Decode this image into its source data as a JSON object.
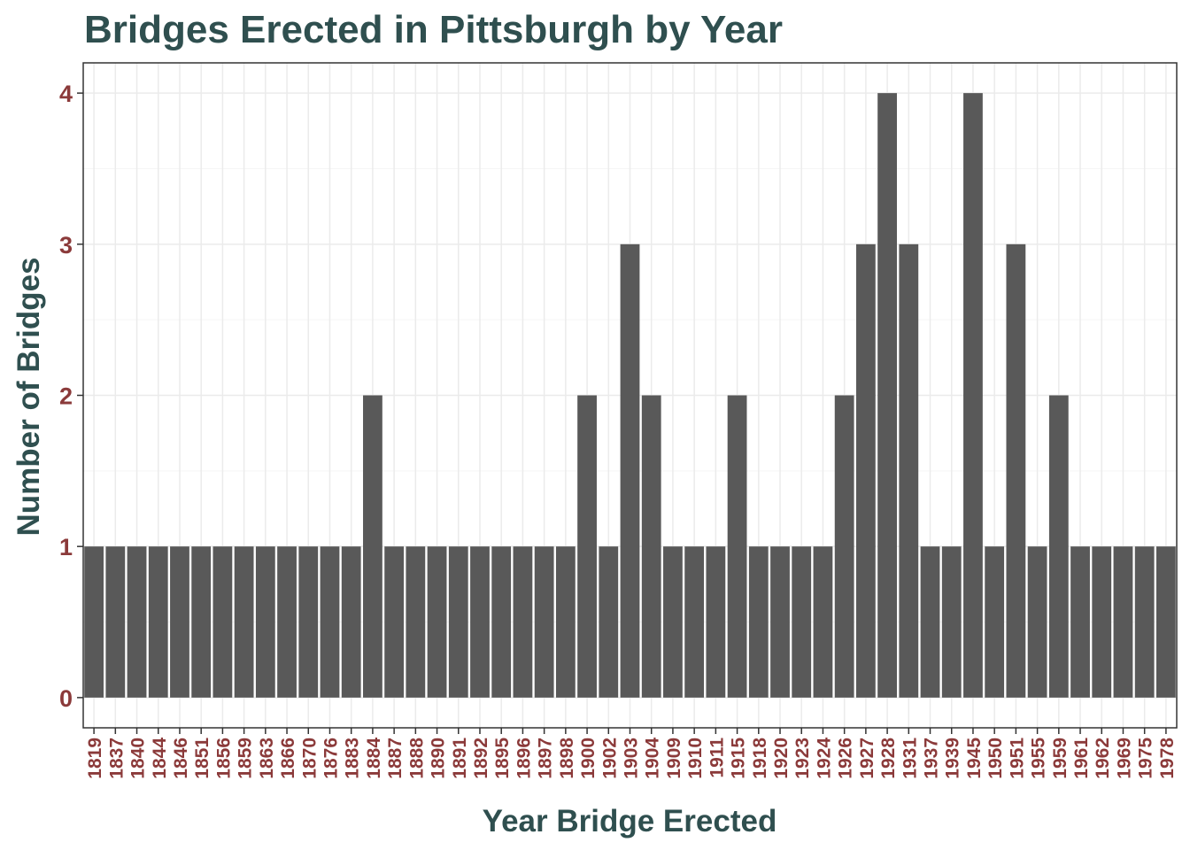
{
  "chart_data": {
    "type": "bar",
    "title": "Bridges Erected in Pittsburgh by Year",
    "xlabel": "Year Bridge Erected",
    "ylabel": "Number of Bridges",
    "categories": [
      "1819",
      "1837",
      "1840",
      "1844",
      "1846",
      "1851",
      "1856",
      "1859",
      "1863",
      "1866",
      "1870",
      "1876",
      "1883",
      "1884",
      "1887",
      "1888",
      "1890",
      "1891",
      "1892",
      "1895",
      "1896",
      "1897",
      "1898",
      "1900",
      "1902",
      "1903",
      "1904",
      "1909",
      "1910",
      "1911",
      "1915",
      "1918",
      "1920",
      "1923",
      "1924",
      "1926",
      "1927",
      "1928",
      "1931",
      "1937",
      "1939",
      "1945",
      "1950",
      "1951",
      "1955",
      "1959",
      "1961",
      "1962",
      "1969",
      "1975",
      "1978"
    ],
    "values": [
      1,
      1,
      1,
      1,
      1,
      1,
      1,
      1,
      1,
      1,
      1,
      1,
      1,
      2,
      1,
      1,
      1,
      1,
      1,
      1,
      1,
      1,
      1,
      2,
      1,
      3,
      2,
      1,
      1,
      1,
      2,
      1,
      1,
      1,
      1,
      2,
      3,
      4,
      3,
      1,
      1,
      4,
      1,
      3,
      1,
      2,
      1,
      1,
      1,
      1,
      1
    ],
    "ylim": [
      -0.2,
      4.2
    ],
    "yticks": [
      "0",
      "1",
      "2",
      "3",
      "4"
    ],
    "grid": true,
    "legend": "none",
    "colors": {
      "bar": "#595959",
      "title": "#2f4f4f",
      "tick_labels": "#8b3a3a",
      "grid_major": "#ebebeb",
      "grid_minor": "#f5f5f5",
      "panel_border": "#333333"
    }
  }
}
